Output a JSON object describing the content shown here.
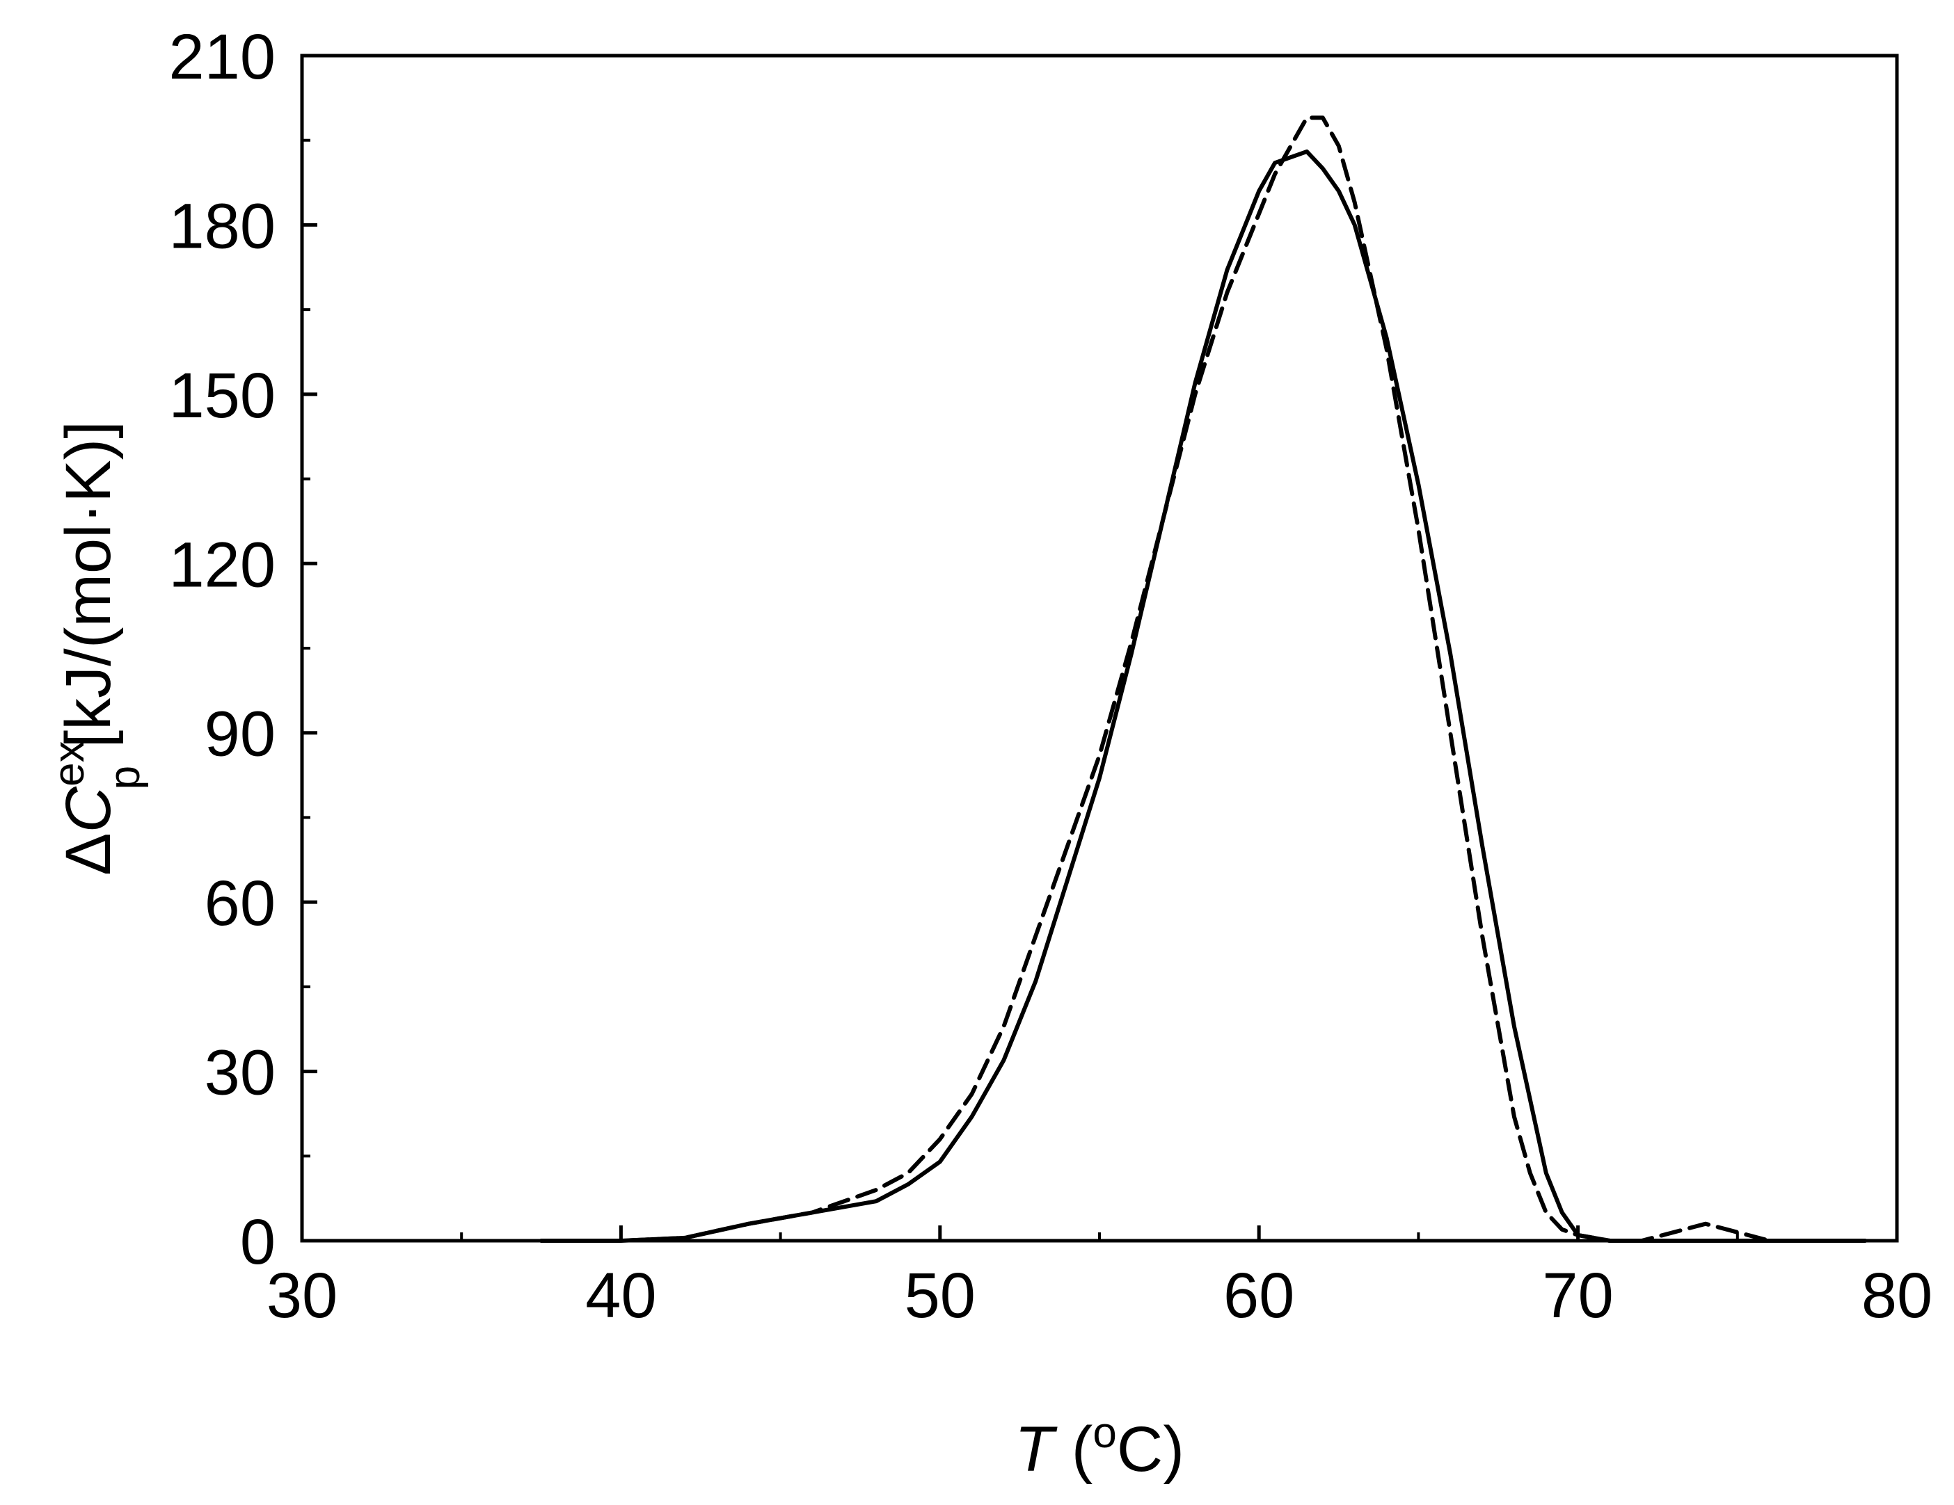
{
  "chart_data": {
    "type": "line",
    "title": "",
    "xlabel": {
      "symbol": "T",
      "unit_open": " (",
      "unit_sup": "o",
      "unit_close": "C)"
    },
    "ylabel": {
      "delta": "Δ",
      "symbol": "C",
      "sup": "ex",
      "sub": "p",
      "unit": " [kJ/(mol·K)]"
    },
    "xlim": [
      30,
      80
    ],
    "ylim": [
      0,
      210
    ],
    "x_ticks": [
      "30",
      "40",
      "50",
      "60",
      "70",
      "80"
    ],
    "y_ticks": [
      "0",
      "30",
      "60",
      "90",
      "120",
      "150",
      "180",
      "210"
    ],
    "grid": false,
    "legend": "none",
    "colors": {
      "axis": "#000000",
      "series": "#000000"
    },
    "series": [
      {
        "style": "solid",
        "x": [
          37.5,
          40,
          42,
          44,
          46,
          48,
          49,
          50,
          51,
          52,
          53,
          54,
          55,
          56,
          57,
          58,
          59,
          60,
          60.5,
          61,
          61.5,
          62,
          62.5,
          63,
          64,
          65,
          66,
          67,
          68,
          69,
          69.5,
          70,
          71,
          72,
          74,
          76,
          79
        ],
        "y": [
          0,
          0,
          0.5,
          3,
          5,
          7,
          10,
          14,
          22,
          32,
          46,
          64,
          82,
          104,
          128,
          152,
          172,
          186,
          191,
          192,
          193,
          190,
          186,
          180,
          160,
          134,
          104,
          70,
          38,
          12,
          5,
          1,
          0,
          0,
          0,
          0,
          0
        ]
      },
      {
        "style": "dashed",
        "x": [
          37.5,
          40,
          42,
          44,
          46,
          48,
          49,
          50,
          51,
          52,
          53,
          54,
          55,
          56,
          57,
          58,
          59,
          60,
          60.5,
          61,
          61.5,
          62,
          62.5,
          63,
          64,
          65,
          66,
          67,
          68,
          68.5,
          69,
          69.5,
          70,
          71,
          72,
          74,
          76,
          79
        ],
        "y": [
          0,
          0,
          0.5,
          3,
          5,
          9,
          12,
          18,
          26,
          38,
          54,
          70,
          86,
          106,
          128,
          150,
          168,
          182,
          189,
          194,
          199,
          199,
          194,
          184,
          158,
          126,
          90,
          54,
          22,
          12,
          5,
          2,
          1,
          0,
          0,
          3,
          0,
          0
        ]
      }
    ]
  }
}
